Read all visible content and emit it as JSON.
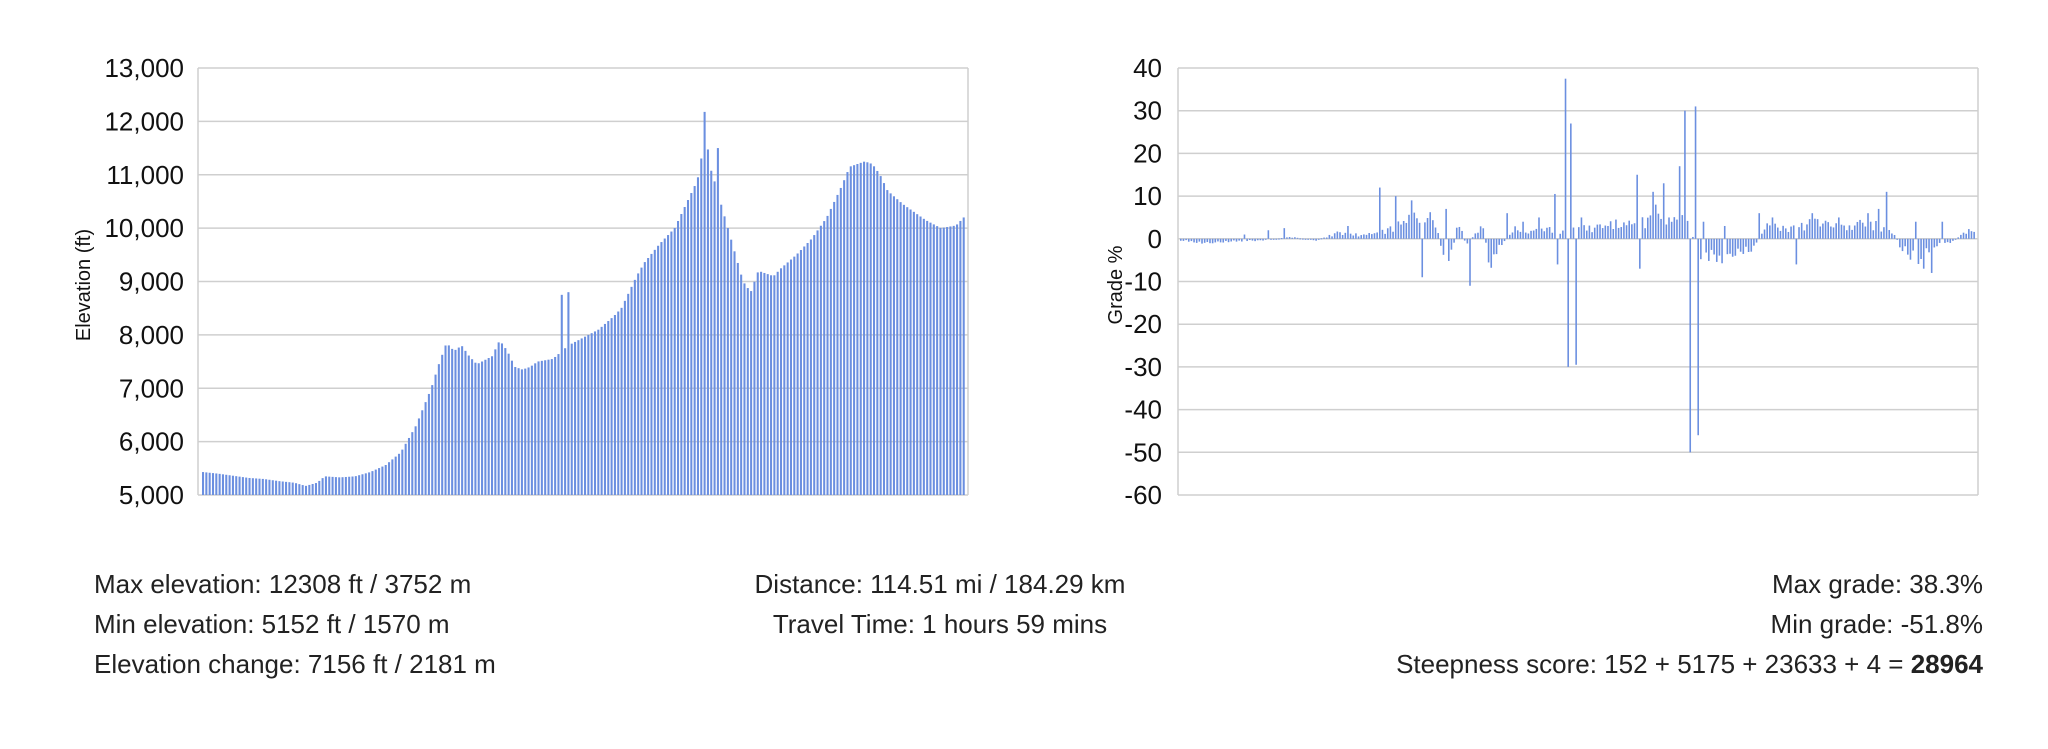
{
  "chart_data": [
    {
      "type": "bar",
      "ylabel": "Elevation (ft)",
      "ylim": [
        5000,
        13000
      ],
      "yticks": [
        5000,
        6000,
        7000,
        8000,
        9000,
        10000,
        11000,
        12000,
        13000
      ],
      "ytick_labels": [
        "5,000",
        "6,000",
        "7,000",
        "8,000",
        "9,000",
        "10,000",
        "11,000",
        "12,000",
        "13,000"
      ],
      "grid": true,
      "color": "#6b8fe0",
      "profile_points": [
        [
          0,
          5430
        ],
        [
          2,
          5400
        ],
        [
          4,
          5360
        ],
        [
          6,
          5320
        ],
        [
          8,
          5300
        ],
        [
          10,
          5260
        ],
        [
          12,
          5230
        ],
        [
          13.5,
          5170
        ],
        [
          15,
          5230
        ],
        [
          16,
          5350
        ],
        [
          18,
          5330
        ],
        [
          20,
          5350
        ],
        [
          22,
          5430
        ],
        [
          24,
          5560
        ],
        [
          26,
          5800
        ],
        [
          28,
          6300
        ],
        [
          30,
          7000
        ],
        [
          31,
          7450
        ],
        [
          32,
          7850
        ],
        [
          33,
          7700
        ],
        [
          34,
          7800
        ],
        [
          35,
          7600
        ],
        [
          36,
          7450
        ],
        [
          38,
          7600
        ],
        [
          39,
          7900
        ],
        [
          40,
          7700
        ],
        [
          41,
          7400
        ],
        [
          42,
          7350
        ],
        [
          43,
          7400
        ],
        [
          44,
          7500
        ],
        [
          46,
          7550
        ],
        [
          48,
          7800
        ],
        [
          50,
          7950
        ],
        [
          52,
          8100
        ],
        [
          54,
          8350
        ],
        [
          55,
          8500
        ],
        [
          56,
          8800
        ],
        [
          57,
          9100
        ],
        [
          58,
          9350
        ],
        [
          60,
          9700
        ],
        [
          62,
          10000
        ],
        [
          63,
          10300
        ],
        [
          64,
          10600
        ],
        [
          65,
          10900
        ],
        [
          65.5,
          11300
        ],
        [
          66,
          12300
        ],
        [
          66.5,
          11200
        ],
        [
          67,
          11000
        ],
        [
          68,
          10500
        ],
        [
          69,
          10000
        ],
        [
          70,
          9500
        ],
        [
          71,
          9000
        ],
        [
          72,
          8800
        ],
        [
          73,
          9200
        ],
        [
          74,
          9150
        ],
        [
          75,
          9100
        ],
        [
          76,
          9250
        ],
        [
          78,
          9500
        ],
        [
          80,
          9800
        ],
        [
          82,
          10200
        ],
        [
          84,
          10800
        ],
        [
          85,
          11150
        ],
        [
          86,
          11200
        ],
        [
          87,
          11250
        ],
        [
          88,
          11200
        ],
        [
          89,
          11000
        ],
        [
          90,
          10700
        ],
        [
          92,
          10450
        ],
        [
          94,
          10250
        ],
        [
          95,
          10150
        ],
        [
          97,
          10000
        ],
        [
          99,
          10050
        ],
        [
          100,
          10200
        ]
      ],
      "spikes": [
        [
          47,
          8750
        ],
        [
          48,
          8800
        ],
        [
          67.5,
          11500
        ]
      ]
    },
    {
      "type": "bar",
      "ylabel": "Grade %",
      "ylim": [
        -60,
        40
      ],
      "yticks": [
        -60,
        -50,
        -40,
        -30,
        -20,
        -10,
        0,
        10,
        20,
        30,
        40
      ],
      "grid": true,
      "color": "#6b8fe0",
      "grade_points": [
        [
          0,
          -0.5
        ],
        [
          3,
          -1.2
        ],
        [
          6,
          -0.8
        ],
        [
          10,
          -0.5
        ],
        [
          14,
          0.5
        ],
        [
          17,
          -0.5
        ],
        [
          20,
          2
        ],
        [
          23,
          1
        ],
        [
          26,
          2.5
        ],
        [
          28,
          5
        ],
        [
          30,
          7
        ],
        [
          32,
          6
        ],
        [
          33,
          -4
        ],
        [
          34,
          -6
        ],
        [
          35,
          5
        ],
        [
          36,
          -2
        ],
        [
          38,
          4
        ],
        [
          39,
          -8
        ],
        [
          40,
          -3
        ],
        [
          42,
          3
        ],
        [
          44,
          2
        ],
        [
          46,
          3
        ],
        [
          48,
          2
        ],
        [
          50,
          4
        ],
        [
          52,
          3
        ],
        [
          54,
          5
        ],
        [
          56,
          4
        ],
        [
          58,
          5
        ],
        [
          60,
          6
        ],
        [
          62,
          5
        ],
        [
          64,
          6
        ],
        [
          65,
          -4
        ],
        [
          66,
          -6
        ],
        [
          67,
          -5
        ],
        [
          68,
          -6
        ],
        [
          70,
          -4
        ],
        [
          72,
          -3
        ],
        [
          74,
          4
        ],
        [
          76,
          3
        ],
        [
          78,
          4
        ],
        [
          80,
          5
        ],
        [
          82,
          4
        ],
        [
          84,
          3
        ],
        [
          86,
          5
        ],
        [
          88,
          4
        ],
        [
          90,
          1
        ],
        [
          91,
          -3
        ],
        [
          92,
          -5
        ],
        [
          93,
          -6
        ],
        [
          94,
          -4
        ],
        [
          95,
          -2
        ],
        [
          97,
          -1
        ],
        [
          99,
          2
        ],
        [
          100,
          3
        ]
      ],
      "grade_spikes": [
        [
          8,
          1
        ],
        [
          11,
          2
        ],
        [
          13,
          2.5
        ],
        [
          21,
          3
        ],
        [
          25,
          12
        ],
        [
          27,
          10
        ],
        [
          29,
          9
        ],
        [
          30.5,
          -9
        ],
        [
          33.5,
          7
        ],
        [
          36.5,
          -11
        ],
        [
          41,
          6
        ],
        [
          43,
          4
        ],
        [
          45,
          5
        ],
        [
          47,
          10.5
        ],
        [
          47.5,
          -6
        ],
        [
          48.5,
          37.5
        ],
        [
          48.8,
          -30
        ],
        [
          49.3,
          27
        ],
        [
          49.7,
          -29.5
        ],
        [
          50.5,
          5
        ],
        [
          54,
          3
        ],
        [
          57.5,
          15
        ],
        [
          57.8,
          -7
        ],
        [
          59.5,
          11
        ],
        [
          60,
          8
        ],
        [
          61,
          13
        ],
        [
          63,
          17
        ],
        [
          63.5,
          30
        ],
        [
          64.3,
          -50
        ],
        [
          64.8,
          31
        ],
        [
          65.3,
          -46
        ],
        [
          66,
          4
        ],
        [
          68.5,
          3
        ],
        [
          73,
          6
        ],
        [
          74.5,
          5
        ],
        [
          77.5,
          -6
        ],
        [
          79.5,
          6
        ],
        [
          83,
          5
        ],
        [
          86.5,
          6
        ],
        [
          88,
          7
        ],
        [
          89,
          11
        ],
        [
          90.5,
          -2
        ],
        [
          92.5,
          4
        ],
        [
          93.5,
          -7
        ],
        [
          94.5,
          -8
        ],
        [
          96,
          4
        ]
      ]
    }
  ],
  "stats": {
    "max_elevation": "Max elevation: 12308 ft / 3752 m",
    "min_elevation": "Min elevation: 5152 ft / 1570 m",
    "elevation_change": "Elevation change: 7156 ft / 2181 m",
    "distance": "Distance: 114.51 mi / 184.29 km",
    "travel_time": "Travel Time: 1 hours 59 mins",
    "max_grade": "Max grade: 38.3%",
    "min_grade": "Min grade: -51.8%",
    "steepness_prefix": "Steepness score: 152 + 5175 + 23633 + 4 = ",
    "steepness_total": "28964"
  }
}
